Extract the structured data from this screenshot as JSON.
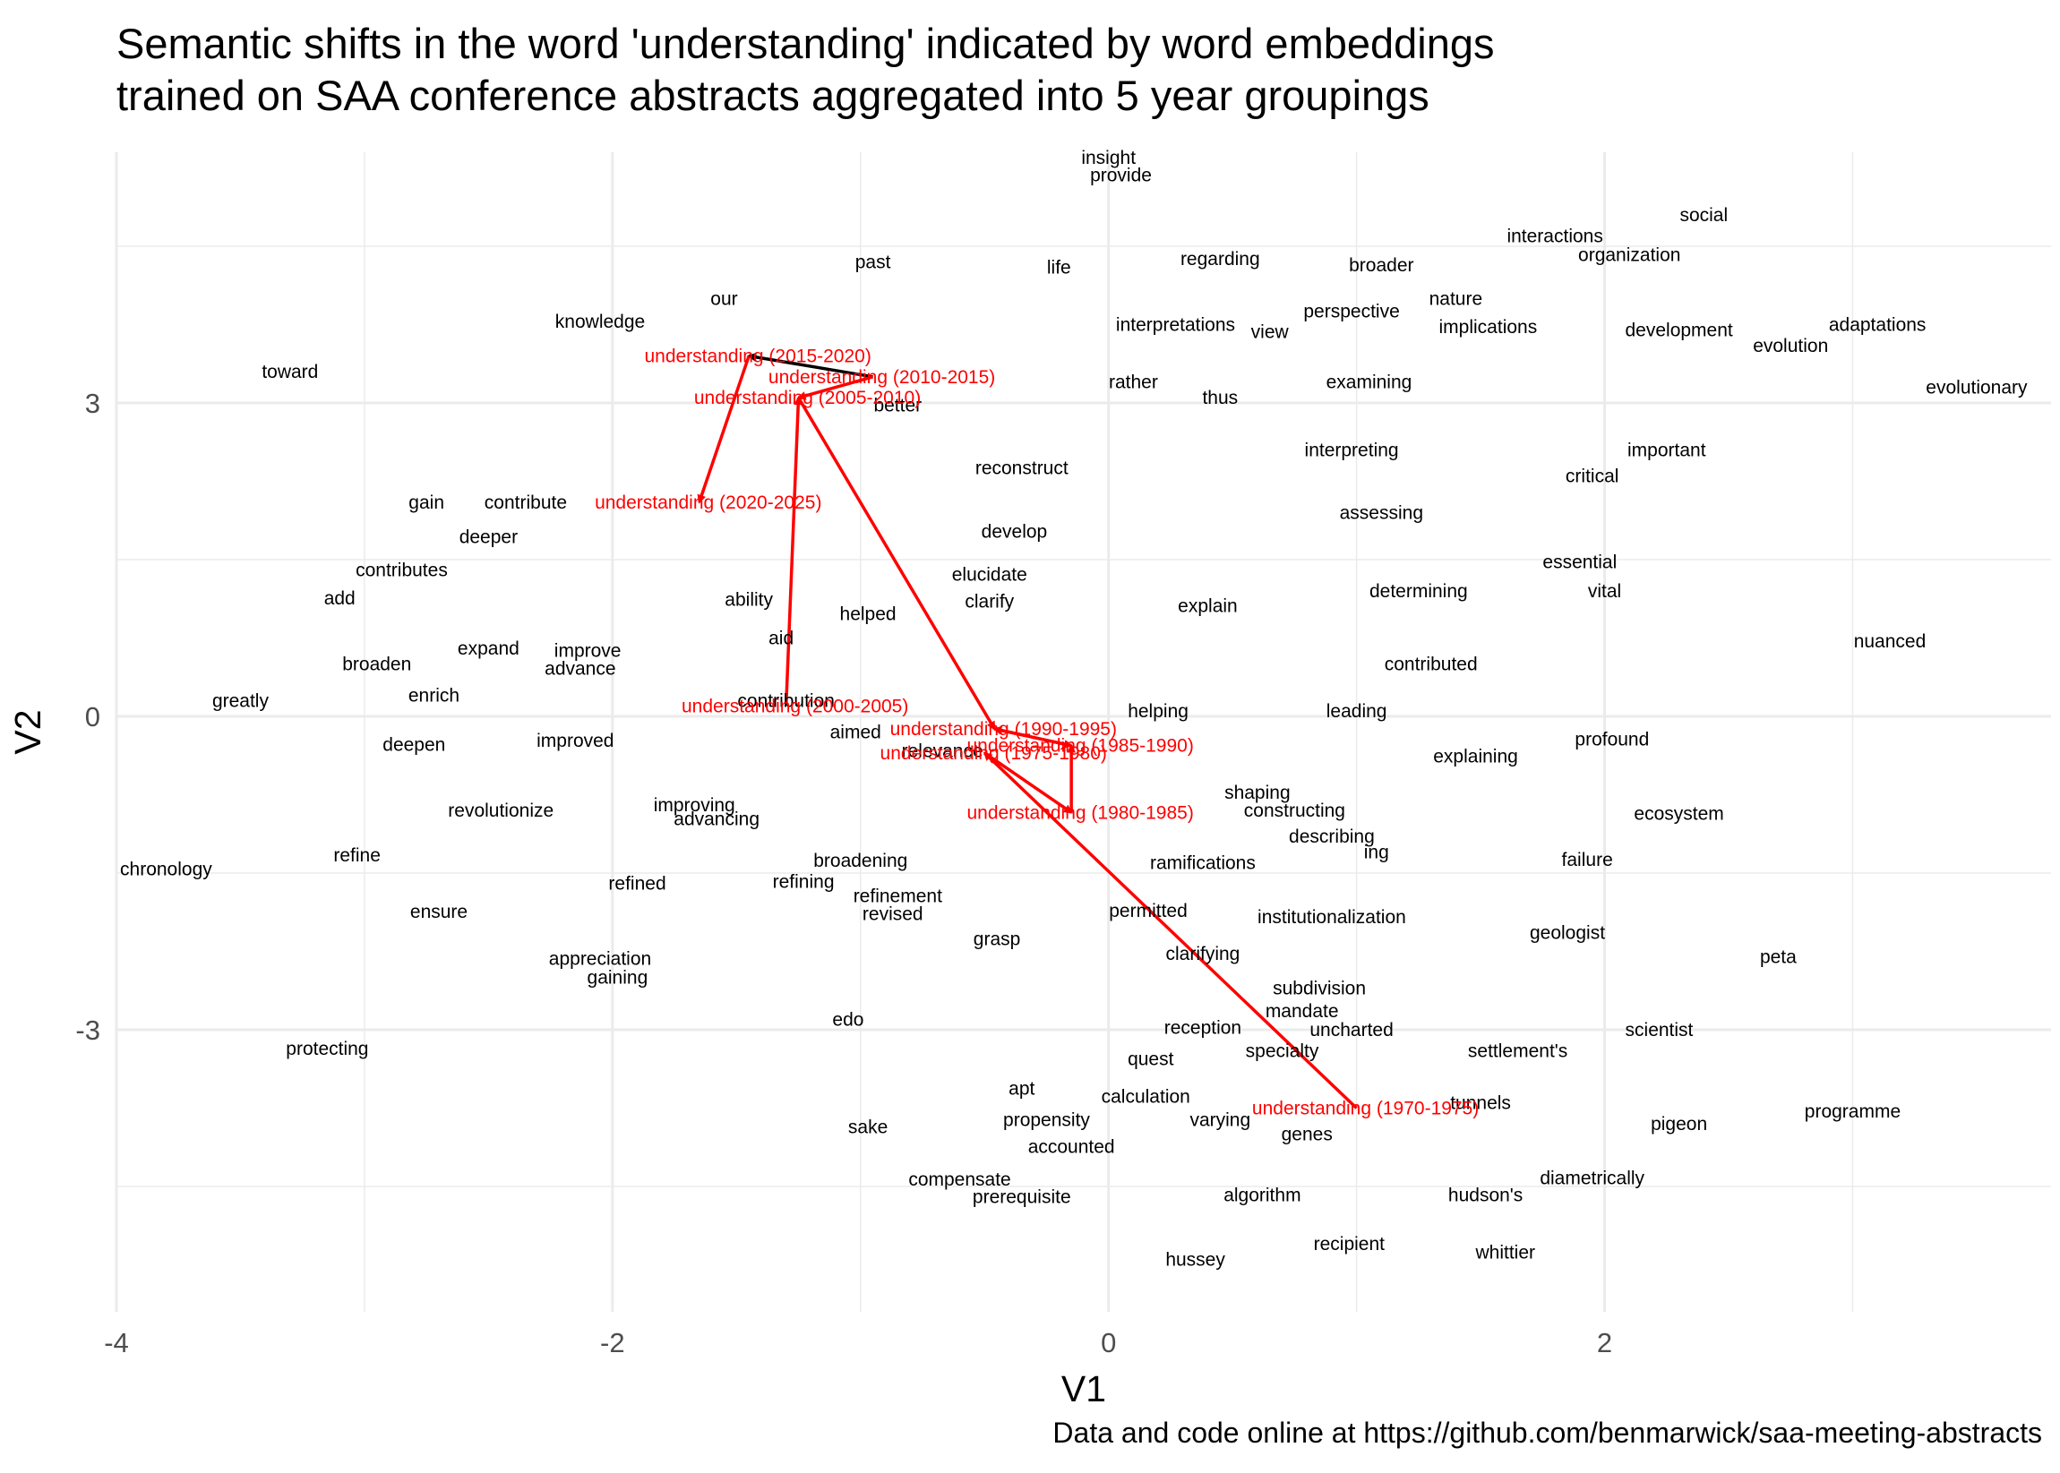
{
  "title_lines": [
    "Semantic shifts in the word 'understanding' indicated by word embeddings",
    "trained on SAA conference abstracts aggregated into 5 year groupings"
  ],
  "caption": "Data and code online at https://github.com/benmarwick/saa-meeting-abstracts",
  "colors": {
    "highlight": "#ff0000",
    "text": "#000000",
    "grid": "#ebebeb",
    "tick": "#4d4d4d"
  },
  "chart_data": {
    "type": "scatter",
    "xlabel": "V1",
    "ylabel": "V2",
    "xlim": [
      -4.0,
      3.8
    ],
    "ylim": [
      -5.7,
      5.4
    ],
    "xticks": [
      -4,
      -2,
      0,
      2
    ],
    "yticks": [
      -3,
      0,
      3
    ],
    "grid": true,
    "words": [
      {
        "label": "insight",
        "x": 0.0,
        "y": 5.35
      },
      {
        "label": "provide",
        "x": 0.05,
        "y": 5.18
      },
      {
        "label": "social",
        "x": 2.4,
        "y": 4.8
      },
      {
        "label": "interactions",
        "x": 1.8,
        "y": 4.6
      },
      {
        "label": "organization",
        "x": 2.1,
        "y": 4.42
      },
      {
        "label": "past",
        "x": -0.95,
        "y": 4.35
      },
      {
        "label": "life",
        "x": -0.2,
        "y": 4.3
      },
      {
        "label": "regarding",
        "x": 0.45,
        "y": 4.38
      },
      {
        "label": "broader",
        "x": 1.1,
        "y": 4.32
      },
      {
        "label": "our",
        "x": -1.55,
        "y": 4.0
      },
      {
        "label": "nature",
        "x": 1.4,
        "y": 4.0
      },
      {
        "label": "perspective",
        "x": 0.98,
        "y": 3.88
      },
      {
        "label": "knowledge",
        "x": -2.05,
        "y": 3.78
      },
      {
        "label": "interpretations",
        "x": 0.27,
        "y": 3.75
      },
      {
        "label": "view",
        "x": 0.65,
        "y": 3.68
      },
      {
        "label": "implications",
        "x": 1.53,
        "y": 3.73
      },
      {
        "label": "development",
        "x": 2.3,
        "y": 3.7
      },
      {
        "label": "adaptations",
        "x": 3.1,
        "y": 3.75
      },
      {
        "label": "evolution",
        "x": 2.75,
        "y": 3.55
      },
      {
        "label": "toward",
        "x": -3.3,
        "y": 3.3
      },
      {
        "label": "rather",
        "x": 0.1,
        "y": 3.2
      },
      {
        "label": "examining",
        "x": 1.05,
        "y": 3.2
      },
      {
        "label": "evolutionary",
        "x": 3.5,
        "y": 3.15
      },
      {
        "label": "thus",
        "x": 0.45,
        "y": 3.05
      },
      {
        "label": "better",
        "x": -0.85,
        "y": 2.98
      },
      {
        "label": "interpreting",
        "x": 0.98,
        "y": 2.55
      },
      {
        "label": "important",
        "x": 2.25,
        "y": 2.55
      },
      {
        "label": "reconstruct",
        "x": -0.35,
        "y": 2.38
      },
      {
        "label": "critical",
        "x": 1.95,
        "y": 2.3
      },
      {
        "label": "gain",
        "x": -2.75,
        "y": 2.05
      },
      {
        "label": "contribute",
        "x": -2.35,
        "y": 2.05
      },
      {
        "label": "assessing",
        "x": 1.1,
        "y": 1.95
      },
      {
        "label": "deeper",
        "x": -2.5,
        "y": 1.72
      },
      {
        "label": "develop",
        "x": -0.38,
        "y": 1.77
      },
      {
        "label": "essential",
        "x": 1.9,
        "y": 1.48
      },
      {
        "label": "contributes",
        "x": -2.85,
        "y": 1.4
      },
      {
        "label": "elucidate",
        "x": -0.48,
        "y": 1.36
      },
      {
        "label": "determining",
        "x": 1.25,
        "y": 1.2
      },
      {
        "label": "vital",
        "x": 2.0,
        "y": 1.2
      },
      {
        "label": "add",
        "x": -3.1,
        "y": 1.13
      },
      {
        "label": "ability",
        "x": -1.45,
        "y": 1.12
      },
      {
        "label": "clarify",
        "x": -0.48,
        "y": 1.1
      },
      {
        "label": "explain",
        "x": 0.4,
        "y": 1.06
      },
      {
        "label": "helped",
        "x": -0.97,
        "y": 0.98
      },
      {
        "label": "aid",
        "x": -1.32,
        "y": 0.75
      },
      {
        "label": "nuanced",
        "x": 3.15,
        "y": 0.72
      },
      {
        "label": "expand",
        "x": -2.5,
        "y": 0.65
      },
      {
        "label": "improve",
        "x": -2.1,
        "y": 0.63
      },
      {
        "label": "broaden",
        "x": -2.95,
        "y": 0.5
      },
      {
        "label": "advance",
        "x": -2.13,
        "y": 0.46
      },
      {
        "label": "contributed",
        "x": 1.3,
        "y": 0.5
      },
      {
        "label": "enrich",
        "x": -2.72,
        "y": 0.2
      },
      {
        "label": "greatly",
        "x": -3.5,
        "y": 0.15
      },
      {
        "label": "contribution",
        "x": -1.3,
        "y": 0.15
      },
      {
        "label": "helping",
        "x": 0.2,
        "y": 0.05
      },
      {
        "label": "leading",
        "x": 1.0,
        "y": 0.05
      },
      {
        "label": "aimed",
        "x": -1.02,
        "y": -0.15
      },
      {
        "label": "deepen",
        "x": -2.8,
        "y": -0.27
      },
      {
        "label": "improved",
        "x": -2.15,
        "y": -0.23
      },
      {
        "label": "profound",
        "x": 2.03,
        "y": -0.22
      },
      {
        "label": "relevance",
        "x": -0.67,
        "y": -0.33
      },
      {
        "label": "explaining",
        "x": 1.48,
        "y": -0.38
      },
      {
        "label": "shaping",
        "x": 0.6,
        "y": -0.73
      },
      {
        "label": "constructing",
        "x": 0.75,
        "y": -0.9
      },
      {
        "label": "revolutionize",
        "x": -2.45,
        "y": -0.9
      },
      {
        "label": "improving",
        "x": -1.67,
        "y": -0.85
      },
      {
        "label": "advancing",
        "x": -1.58,
        "y": -0.98
      },
      {
        "label": "ecosystem",
        "x": 2.3,
        "y": -0.93
      },
      {
        "label": "describing",
        "x": 0.9,
        "y": -1.15
      },
      {
        "label": "ing",
        "x": 1.08,
        "y": -1.3
      },
      {
        "label": "refine",
        "x": -3.03,
        "y": -1.33
      },
      {
        "label": "chronology",
        "x": -3.8,
        "y": -1.46
      },
      {
        "label": "broadening",
        "x": -1.0,
        "y": -1.38
      },
      {
        "label": "ramifications",
        "x": 0.38,
        "y": -1.4
      },
      {
        "label": "failure",
        "x": 1.93,
        "y": -1.37
      },
      {
        "label": "refined",
        "x": -1.9,
        "y": -1.6
      },
      {
        "label": "refining",
        "x": -1.23,
        "y": -1.58
      },
      {
        "label": "refinement",
        "x": -0.85,
        "y": -1.72
      },
      {
        "label": "ensure",
        "x": -2.7,
        "y": -1.87
      },
      {
        "label": "revised",
        "x": -0.87,
        "y": -1.89
      },
      {
        "label": "permitted",
        "x": 0.16,
        "y": -1.86
      },
      {
        "label": "institutionalization",
        "x": 0.9,
        "y": -1.92
      },
      {
        "label": "geologist",
        "x": 1.85,
        "y": -2.07
      },
      {
        "label": "grasp",
        "x": -0.45,
        "y": -2.13
      },
      {
        "label": "clarifying",
        "x": 0.38,
        "y": -2.27
      },
      {
        "label": "peta",
        "x": 2.7,
        "y": -2.3
      },
      {
        "label": "appreciation",
        "x": -2.05,
        "y": -2.32
      },
      {
        "label": "gaining",
        "x": -1.98,
        "y": -2.5
      },
      {
        "label": "subdivision",
        "x": 0.85,
        "y": -2.6
      },
      {
        "label": "mandate",
        "x": 0.78,
        "y": -2.82
      },
      {
        "label": "edo",
        "x": -1.05,
        "y": -2.9
      },
      {
        "label": "reception",
        "x": 0.38,
        "y": -2.98
      },
      {
        "label": "uncharted",
        "x": 0.98,
        "y": -3.0
      },
      {
        "label": "scientist",
        "x": 2.22,
        "y": -3.0
      },
      {
        "label": "protecting",
        "x": -3.15,
        "y": -3.18
      },
      {
        "label": "specialty",
        "x": 0.7,
        "y": -3.2
      },
      {
        "label": "settlement's",
        "x": 1.65,
        "y": -3.2
      },
      {
        "label": "quest",
        "x": 0.17,
        "y": -3.28
      },
      {
        "label": "apt",
        "x": -0.35,
        "y": -3.56
      },
      {
        "label": "calculation",
        "x": 0.15,
        "y": -3.64
      },
      {
        "label": "tunnels",
        "x": 1.5,
        "y": -3.7
      },
      {
        "label": "propensity",
        "x": -0.25,
        "y": -3.86
      },
      {
        "label": "varying",
        "x": 0.45,
        "y": -3.86
      },
      {
        "label": "programme",
        "x": 3.0,
        "y": -3.78
      },
      {
        "label": "sake",
        "x": -0.97,
        "y": -3.93
      },
      {
        "label": "pigeon",
        "x": 2.3,
        "y": -3.9
      },
      {
        "label": "genes",
        "x": 0.8,
        "y": -4.0
      },
      {
        "label": "accounted",
        "x": -0.15,
        "y": -4.12
      },
      {
        "label": "compensate",
        "x": -0.6,
        "y": -4.43
      },
      {
        "label": "diametrically",
        "x": 1.95,
        "y": -4.42
      },
      {
        "label": "prerequisite",
        "x": -0.35,
        "y": -4.6
      },
      {
        "label": "algorithm",
        "x": 0.62,
        "y": -4.58
      },
      {
        "label": "hudson's",
        "x": 1.52,
        "y": -4.58
      },
      {
        "label": "recipient",
        "x": 0.97,
        "y": -5.05
      },
      {
        "label": "hussey",
        "x": 0.35,
        "y": -5.2
      },
      {
        "label": "whittier",
        "x": 1.6,
        "y": -5.13
      }
    ],
    "understanding_series": [
      {
        "label": "understanding (1970-1975)",
        "x": 1.0,
        "y": -3.75
      },
      {
        "label": "understanding (1975-1980)",
        "x": -0.5,
        "y": -0.35
      },
      {
        "label": "understanding (1980-1985)",
        "x": -0.15,
        "y": -0.92
      },
      {
        "label": "understanding (1985-1990)",
        "x": -0.15,
        "y": -0.28
      },
      {
        "label": "understanding (1990-1995)",
        "x": -0.46,
        "y": -0.12
      },
      {
        "label": "understanding (2000-2005)",
        "x": -1.3,
        "y": 0.1
      },
      {
        "label": "understanding (2005-2010)",
        "x": -1.25,
        "y": 3.05
      },
      {
        "label": "understanding (2010-2015)",
        "x": -0.95,
        "y": 3.25
      },
      {
        "label": "understanding (2015-2020)",
        "x": -1.45,
        "y": 3.45
      },
      {
        "label": "understanding (2020-2025)",
        "x": -1.65,
        "y": 2.05
      }
    ],
    "arrows": [
      {
        "from": "understanding (1970-1975)",
        "to": "understanding (1975-1980)",
        "color": "red"
      },
      {
        "from": "understanding (1975-1980)",
        "to": "understanding (1980-1985)",
        "color": "red"
      },
      {
        "from": "understanding (1980-1985)",
        "to": "understanding (1985-1990)",
        "color": "red"
      },
      {
        "from": "understanding (1985-1990)",
        "to": "understanding (1990-1995)",
        "color": "red"
      },
      {
        "from": "understanding (2000-2005)",
        "to": "understanding (2005-2010)",
        "color": "red"
      },
      {
        "from": "understanding (2010-2015)",
        "to": "understanding (2015-2020)",
        "color": "black"
      },
      {
        "from": "understanding (2015-2020)",
        "to": "understanding (2020-2025)",
        "color": "red"
      }
    ],
    "extra_arrows": [
      {
        "from": "understanding (2005-2010)",
        "to": "understanding (1990-1995)",
        "color": "red"
      },
      {
        "from": "understanding (1990-1995)",
        "to": "understanding (1985-1990)",
        "color": "red"
      },
      {
        "from": "understanding (2010-2015)",
        "to": "understanding (2005-2010)",
        "color": "red"
      }
    ]
  }
}
